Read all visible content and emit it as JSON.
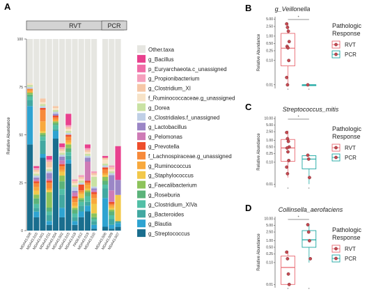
{
  "figure": {
    "panel_a_letter": "A",
    "panel_b_letter": "B",
    "panel_c_letter": "C",
    "panel_d_letter": "D"
  },
  "chart_data": [
    {
      "panel": "A",
      "type": "bar",
      "stacked": true,
      "ylabel": "Relative Abundance",
      "ylim": [
        0,
        100
      ],
      "yticks": [
        0,
        25,
        50,
        75,
        100
      ],
      "facets": [
        {
          "label": "RVT",
          "samples": [
            "MDA43.008",
            "MDA43.016",
            "MDA43.001",
            "MDA43.011",
            "MDA43.004",
            "MDA43.002",
            "MDA43.015",
            "MDA43.018",
            "PA08.012",
            "MDA43.019",
            "MDA43.010"
          ]
        },
        {
          "label": "PCR",
          "samples": [
            "MDA43.006",
            "MDA43.009",
            "MDA43.007"
          ]
        }
      ],
      "legend": [
        "Other.taxa",
        "g_Bacillus",
        "p_Euryarchaeota.c_unassigned",
        "g_Propionibacterium",
        "g_Clostridium_XI",
        "f_Ruminococcaceae.g_unassigned",
        "g_Dorea",
        "o_Clostridiales.f_unassigned",
        "g_Lactobacillus",
        "g_Pelomonas",
        "g_Prevotella",
        "f_Lachnospiraceae.g_unassigned",
        "g_Ruminococcus",
        "g_Staphylococcus",
        "g_Faecalibacterium",
        "g_Roseburia",
        "g_Clostridium_XIVa",
        "g_Bacteroides",
        "g_Blautia",
        "g_Streptococcus"
      ],
      "colors": [
        "#e6e6e1",
        "#e8418e",
        "#f06ea8",
        "#f5a0bd",
        "#f6c7a7",
        "#f7e3c7",
        "#c9e2a3",
        "#bfcfe6",
        "#9b86c6",
        "#ce7bb6",
        "#ee4e2c",
        "#f78a3a",
        "#f8a93d",
        "#f2c84a",
        "#8dc35b",
        "#5bb37a",
        "#52bfa6",
        "#42a8a1",
        "#2ea3d1",
        "#1a6e8e"
      ],
      "series_stack_bottom_to_top": [
        {
          "name": "g_Streptococcus",
          "values": [
            45,
            7,
            38,
            3,
            48,
            7,
            35,
            3,
            7,
            10,
            1,
            2,
            1,
            2
          ]
        },
        {
          "name": "g_Blautia",
          "values": [
            20,
            3,
            2,
            2,
            4,
            5,
            2,
            2,
            3,
            3,
            2,
            15,
            2,
            2
          ]
        },
        {
          "name": "g_Bacteroides",
          "values": [
            3,
            2,
            7,
            3,
            1,
            7,
            2,
            2,
            3,
            2,
            2,
            5,
            3,
            1
          ]
        },
        {
          "name": "g_Clostridium_XIVa",
          "values": [
            2,
            2,
            2,
            2,
            2,
            3,
            2,
            2,
            2,
            3,
            1,
            2,
            2,
            0
          ]
        },
        {
          "name": "g_Roseburia",
          "values": [
            1,
            3,
            1,
            2,
            1,
            4,
            2,
            2,
            1,
            2,
            1,
            2,
            2,
            0
          ]
        },
        {
          "name": "g_Faecalibacterium",
          "values": [
            1,
            2,
            1,
            8,
            1,
            3,
            2,
            1,
            1,
            1,
            2,
            2,
            1,
            0
          ]
        },
        {
          "name": "g_Staphylococcus",
          "values": [
            0,
            2,
            1,
            1,
            0,
            2,
            1,
            1,
            2,
            1,
            5,
            1,
            1,
            14
          ]
        },
        {
          "name": "g_Ruminococcus",
          "values": [
            1,
            2,
            5,
            1,
            1,
            1,
            1,
            2,
            1,
            2,
            3,
            1,
            1,
            0
          ]
        },
        {
          "name": "f_Lachnospiraceae.g_unassigned",
          "values": [
            1,
            2,
            6,
            3,
            1,
            2,
            2,
            2,
            1,
            1,
            2,
            2,
            1,
            0
          ]
        },
        {
          "name": "g_Prevotella",
          "values": [
            0,
            1,
            1,
            1,
            1,
            1,
            1,
            1,
            3,
            1,
            1,
            1,
            1,
            0
          ]
        },
        {
          "name": "g_Pelomonas",
          "values": [
            0,
            1,
            0,
            1,
            0,
            2,
            0,
            2,
            0,
            10,
            1,
            0,
            6,
            0
          ]
        },
        {
          "name": "g_Lactobacillus",
          "values": [
            0,
            1,
            0,
            3,
            1,
            2,
            0,
            1,
            0,
            2,
            1,
            0,
            8,
            8
          ]
        },
        {
          "name": "o_Clostridiales.f_unassigned",
          "values": [
            1,
            1,
            1,
            1,
            1,
            1,
            1,
            2,
            1,
            1,
            1,
            1,
            1,
            0
          ]
        },
        {
          "name": "g_Dorea",
          "values": [
            1,
            1,
            1,
            1,
            1,
            1,
            1,
            1,
            1,
            1,
            5,
            1,
            1,
            0
          ]
        },
        {
          "name": "f_Ruminococcaceae.g_unassigned",
          "values": [
            1,
            1,
            1,
            1,
            1,
            1,
            1,
            1,
            1,
            1,
            1,
            2,
            1,
            0
          ]
        },
        {
          "name": "g_Clostridium_XI",
          "values": [
            0,
            1,
            2,
            3,
            1,
            1,
            1,
            1,
            1,
            1,
            1,
            1,
            1,
            0
          ]
        },
        {
          "name": "g_Propionibacterium",
          "values": [
            0,
            1,
            0,
            1,
            0,
            1,
            1,
            1,
            1,
            1,
            1,
            0,
            1,
            0
          ]
        },
        {
          "name": "p_Euryarchaeota.c_unassigned",
          "values": [
            0,
            0,
            0,
            0,
            0,
            0,
            0,
            0,
            0,
            0,
            0,
            0,
            0,
            0
          ]
        },
        {
          "name": "g_Bacillus",
          "values": [
            0,
            1,
            0,
            2,
            0,
            2,
            6,
            0,
            0,
            2,
            0,
            1,
            0,
            18
          ]
        },
        {
          "name": "Other.taxa",
          "values": [
            23,
            67,
            31,
            61,
            35,
            55,
            39,
            74,
            71,
            55,
            69,
            61,
            66,
            57
          ]
        }
      ]
    },
    {
      "panel": "B",
      "type": "box",
      "title": "g_Veillonella",
      "ylabel": "Relative Abundance",
      "log_y": true,
      "yticks": [
        "0.01",
        "0.10",
        "0.25",
        "0.50",
        "1.00",
        "2.50",
        "5.00"
      ],
      "significance": "*",
      "legend_title": [
        "Pathologic",
        "Response"
      ],
      "groups": [
        {
          "name": "RVT",
          "color": "#e8676f",
          "min": 0.01,
          "q1": 0.06,
          "median": 0.32,
          "q3": 1.3,
          "max": 3.5,
          "points": [
            3.2,
            2.3,
            1.6,
            0.6,
            0.38,
            0.33,
            0.1,
            0.02,
            0.01
          ]
        },
        {
          "name": "PCR",
          "color": "#1aa6a1",
          "min": 0.01,
          "q1": 0.01,
          "median": 0.01,
          "q3": 0.01,
          "max": 0.01,
          "points": [
            0.01
          ]
        }
      ]
    },
    {
      "panel": "C",
      "type": "box",
      "title": "Streptococcus_mitis",
      "ylabel": "Relative Abundance",
      "log_y": true,
      "yticks": [
        "0.01",
        "0.10",
        "0.25",
        "0.50",
        "1.00",
        "2.50",
        "5.00",
        "10.00"
      ],
      "significance": "*",
      "legend_title": [
        "Pathologic",
        "Response"
      ],
      "groups": [
        {
          "name": "RVT",
          "color": "#e8676f",
          "min": 0.02,
          "q1": 0.11,
          "median": 0.45,
          "q3": 1.1,
          "max": 2.8,
          "points": [
            2.3,
            1.2,
            0.9,
            0.5,
            0.45,
            0.3,
            0.12,
            0.06,
            0.03
          ]
        },
        {
          "name": "PCR",
          "color": "#1aa6a1",
          "min": 0.01,
          "q1": 0.05,
          "median": 0.14,
          "q3": 0.2,
          "max": 0.22,
          "points": [
            0.21,
            0.14,
            0.02
          ]
        }
      ]
    },
    {
      "panel": "D",
      "type": "box",
      "title": "Collinsella_aerofaciens",
      "ylabel": "Relative Abundance",
      "log_y": true,
      "yticks": [
        "0.01",
        "0.10",
        "0.25",
        "0.50",
        "1.00",
        "2.50",
        "5.00",
        "10.00"
      ],
      "significance": "*",
      "legend_title": [
        "Pathologic",
        "Response"
      ],
      "groups": [
        {
          "name": "RVT",
          "color": "#e8676f",
          "min": 0.01,
          "q1": 0.01,
          "median": 0.06,
          "q3": 0.2,
          "max": 0.35,
          "points": [
            0.3,
            0.15,
            0.03,
            0.01
          ]
        },
        {
          "name": "PCR",
          "color": "#1aa6a1",
          "min": 0.1,
          "q1": 0.5,
          "median": 1.1,
          "q3": 2.9,
          "max": 5.5,
          "points": [
            5.4,
            2.5,
            1.0,
            0.15
          ]
        }
      ]
    }
  ]
}
